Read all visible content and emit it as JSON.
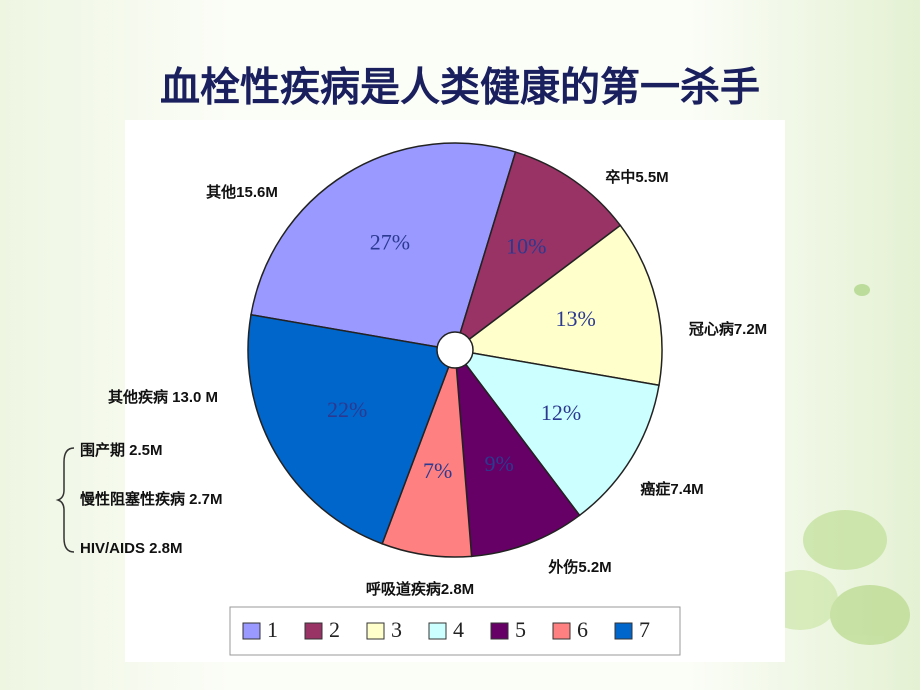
{
  "chart_data": {
    "type": "pie",
    "title": "血栓性疾病是人类健康的第一杀手",
    "categories": [
      "1",
      "2",
      "3",
      "4",
      "5",
      "6",
      "7"
    ],
    "values": [
      27,
      10,
      13,
      12,
      9,
      7,
      22
    ],
    "value_labels": [
      "27%",
      "10%",
      "13%",
      "12%",
      "9%",
      "7%",
      "22%"
    ],
    "slice_labels": [
      "其他15.6M",
      "卒中5.5M",
      "冠心病7.2M",
      "癌症7.4M",
      "外伤5.2M",
      "呼吸道疾病2.8M",
      "其他疾病 13.0 M"
    ],
    "colors": [
      "#9999ff",
      "#993366",
      "#ffffcc",
      "#ccffff",
      "#660066",
      "#ff8080",
      "#0066cc"
    ],
    "annotations": [
      "围产期 2.5M",
      "慢性阻塞性疾病 2.7M",
      "HIV/AIDS 2.8M"
    ]
  }
}
